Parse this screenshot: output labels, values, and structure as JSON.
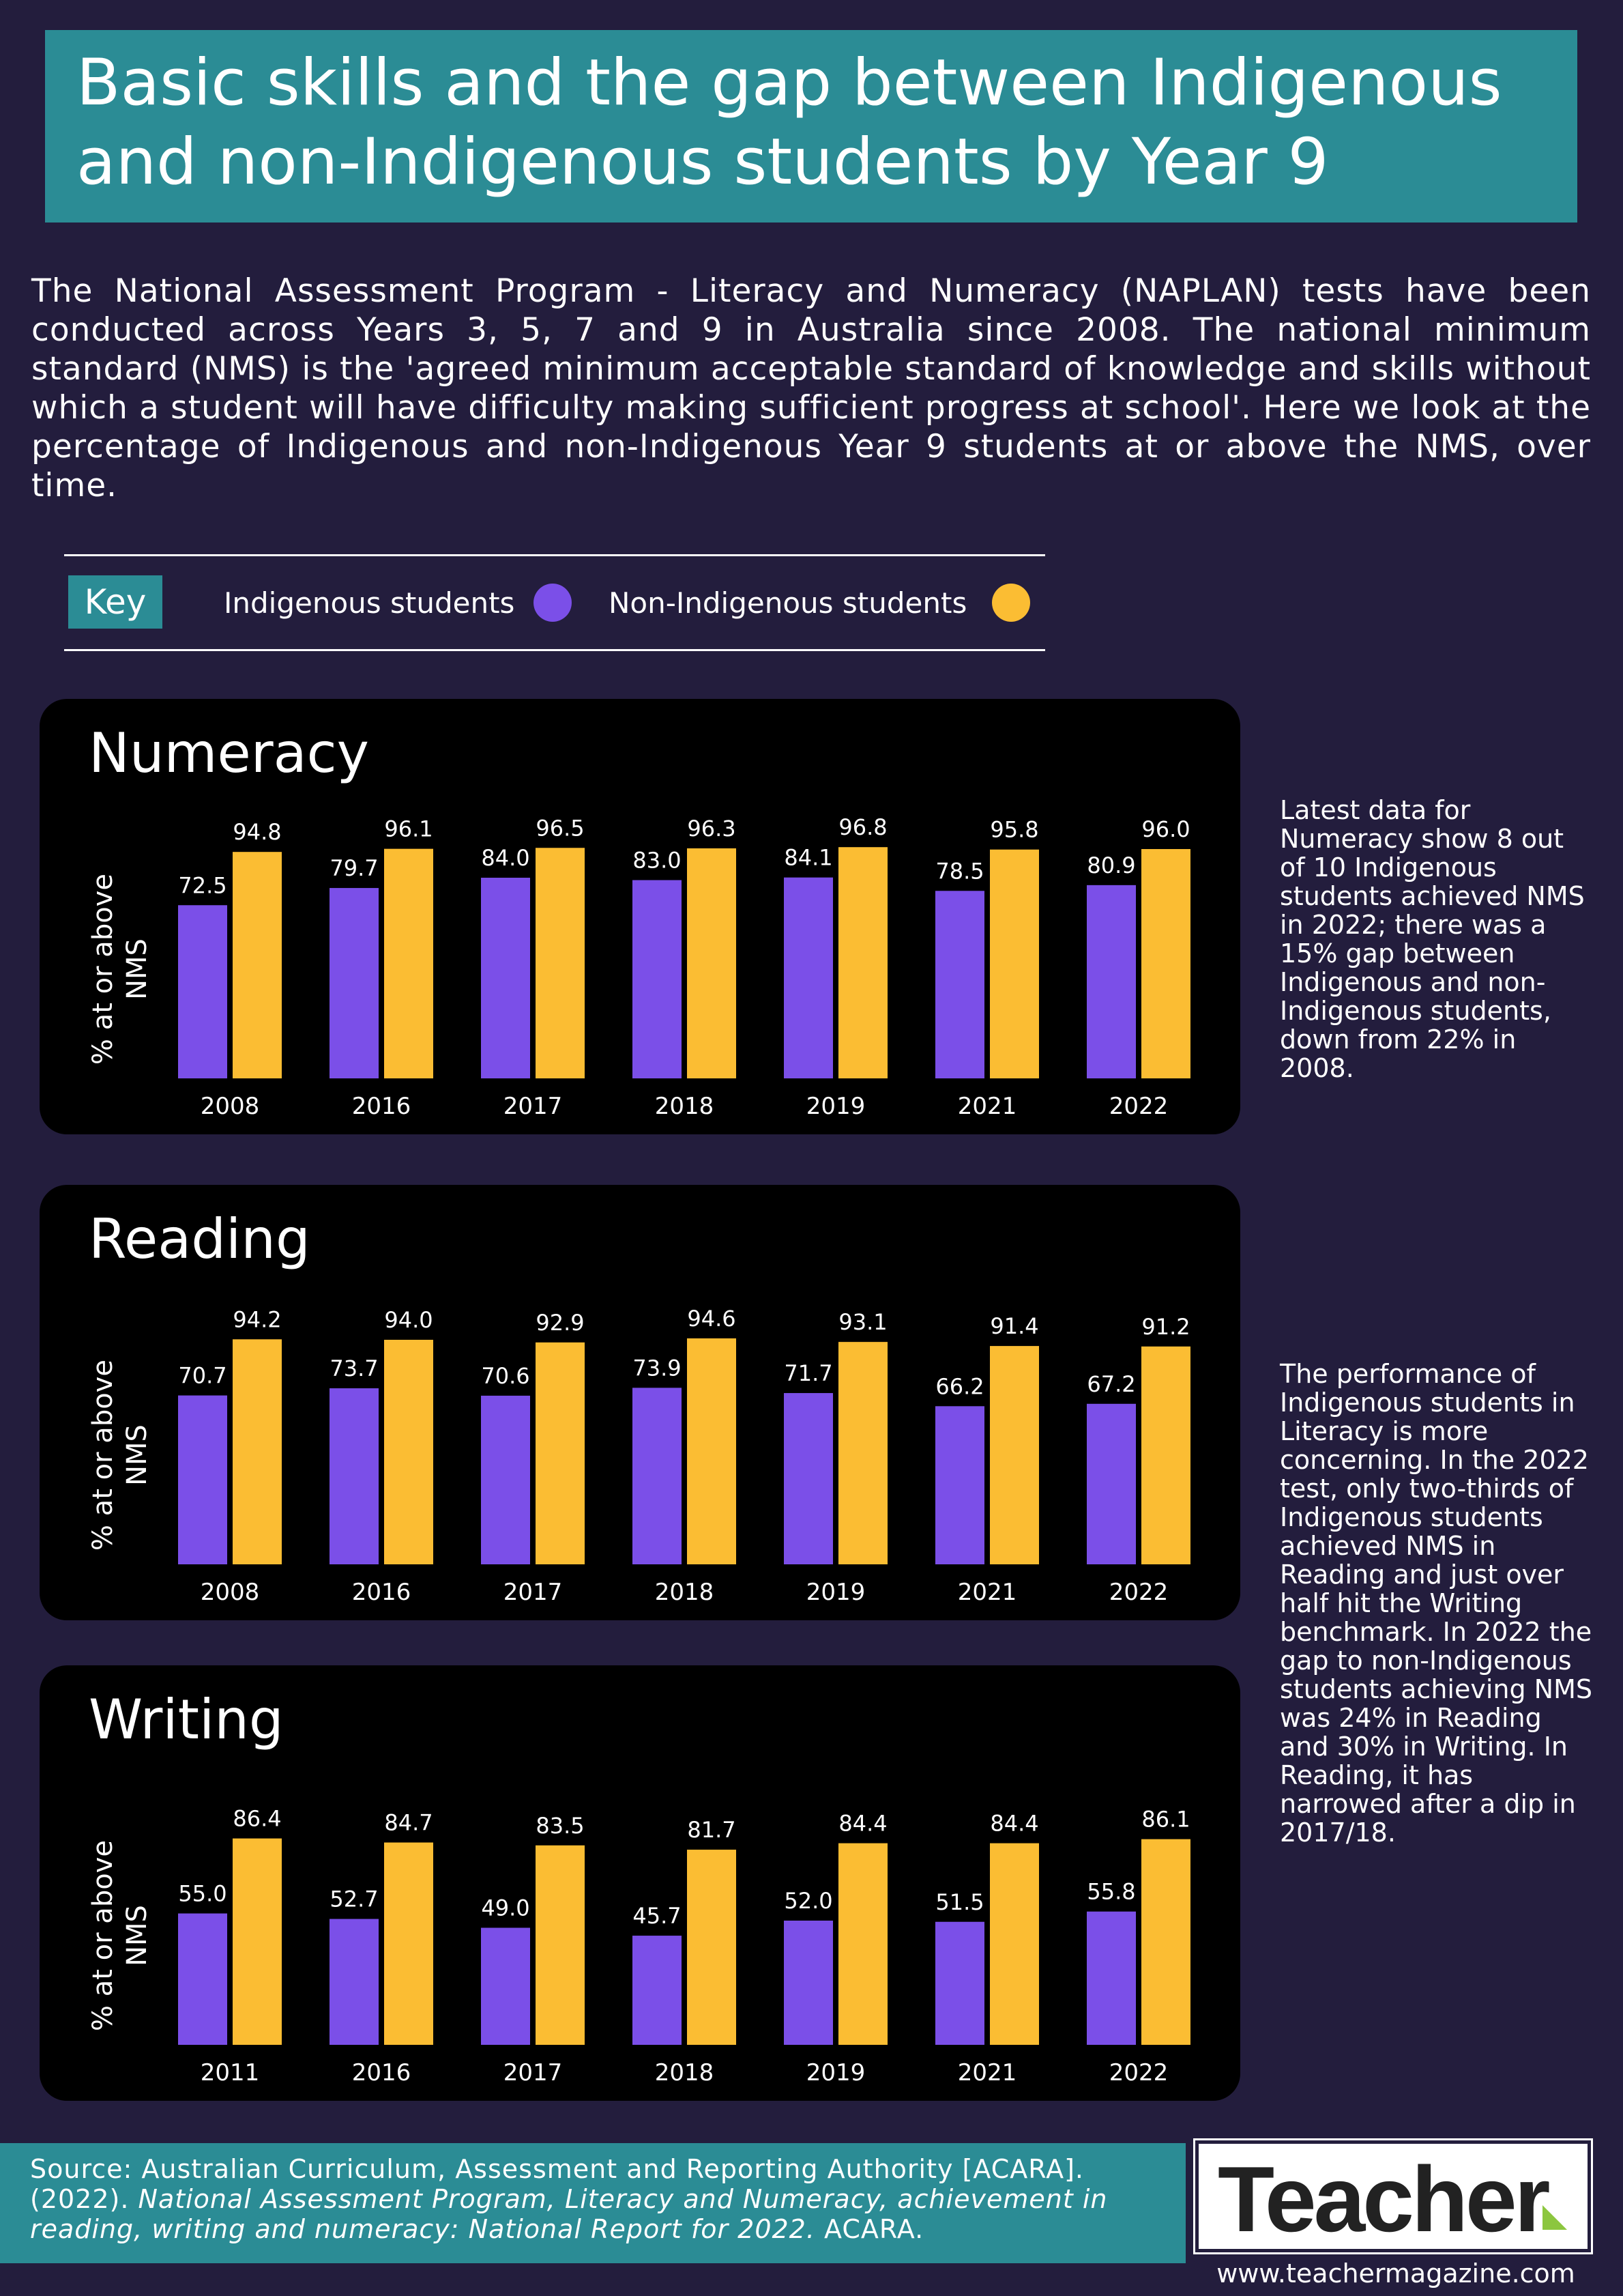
{
  "title": "Basic skills and the gap between Indigenous and non-Indigenous students by Year 9",
  "intro": "The National Assessment Program - Literacy and Numeracy (NAPLAN) tests have been conducted across Years 3, 5, 7 and 9 in Australia since 2008. The national minimum standard (NMS) is the 'agreed minimum acceptable standard of knowledge and skills without which a student will have difficulty making sufficient progress at school'. Here we look at the percentage of Indigenous and non-Indigenous Year 9 students at or above the NMS, over time.",
  "key": {
    "label": "Key",
    "indigenous": "Indigenous students",
    "non_indigenous": "Non-Indigenous students"
  },
  "colors": {
    "indigenous": "#7b4fe8",
    "non_indigenous": "#fbbd33",
    "panel": "#000000",
    "accent": "#2b8c95",
    "background": "#231d3d"
  },
  "notes": {
    "numeracy": "Latest data for Numeracy show 8 out of 10 Indigenous students achieved NMS in 2022; there was a 15% gap between Indigenous and non-Indigenous students, down from 22% in 2008.",
    "literacy": "The performance of Indigenous students in Literacy is more concerning. In the 2022 test, only two-thirds of Indigenous students achieved NMS in Reading and just over half hit the Writing benchmark. In 2022 the gap to non-Indigenous students achieving NMS was 24% in Reading and 30% in Writing. In Reading, it has narrowed after a dip in 2017/18."
  },
  "source": {
    "prefix": "Source: Australian Curriculum, Assessment and Reporting Authority [ACARA]. (2022). ",
    "title": "National Assessment Program, Literacy and Numeracy, achievement in reading, writing and numeracy: National Report for 2022.",
    "suffix": " ACARA."
  },
  "logo": {
    "text": "Teacher",
    "mark": "green-triangle-icon"
  },
  "url": "www.teachermagazine.com",
  "chart_data": [
    {
      "type": "bar",
      "title": "Numeracy",
      "ylabel": "% at or above NMS",
      "categories": [
        "2008",
        "2016",
        "2017",
        "2018",
        "2019",
        "2021",
        "2022"
      ],
      "series": [
        {
          "name": "Indigenous students",
          "values": [
            72.5,
            79.7,
            84.0,
            83.0,
            84.1,
            78.5,
            80.9
          ]
        },
        {
          "name": "Non-Indigenous students",
          "values": [
            94.8,
            96.1,
            96.5,
            96.3,
            96.8,
            95.8,
            96.0
          ]
        }
      ],
      "ylim": [
        0,
        100
      ]
    },
    {
      "type": "bar",
      "title": "Reading",
      "ylabel": "% at or above NMS",
      "categories": [
        "2008",
        "2016",
        "2017",
        "2018",
        "2019",
        "2021",
        "2022"
      ],
      "series": [
        {
          "name": "Indigenous students",
          "values": [
            70.7,
            73.7,
            70.6,
            73.9,
            71.7,
            66.2,
            67.2
          ]
        },
        {
          "name": "Non-Indigenous students",
          "values": [
            94.2,
            94.0,
            92.9,
            94.6,
            93.1,
            91.4,
            91.2
          ]
        }
      ],
      "ylim": [
        0,
        100
      ]
    },
    {
      "type": "bar",
      "title": "Writing",
      "ylabel": "% at or above NMS",
      "categories": [
        "2011",
        "2016",
        "2017",
        "2018",
        "2019",
        "2021",
        "2022"
      ],
      "series": [
        {
          "name": "Indigenous students",
          "values": [
            55.0,
            52.7,
            49.0,
            45.7,
            52.0,
            51.5,
            55.8
          ]
        },
        {
          "name": "Non-Indigenous students",
          "values": [
            86.4,
            84.7,
            83.5,
            81.7,
            84.4,
            84.4,
            86.1
          ]
        }
      ],
      "ylim": [
        0,
        100
      ]
    }
  ]
}
